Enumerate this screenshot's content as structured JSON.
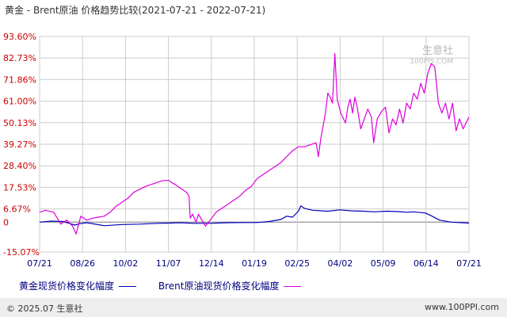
{
  "title": "黄金 - Brent原油 价格趋势比较(2021-07-21 - 2022-07-21)",
  "footer": {
    "copyright": "© 2025.07 生意社",
    "site": "www.100PPI.com"
  },
  "watermark": {
    "name": "生意社",
    "site": "100PPI.COM"
  },
  "colors": {
    "gold": "#0000bb",
    "brent": "#dd00dd",
    "grid": "#cccccc",
    "axis_label_y": "#cc0000",
    "axis_label_x": "#000080"
  },
  "chart_data": {
    "type": "line",
    "title": "黄金 - Brent原油 价格趋势比较(2021-07-21 - 2022-07-21)",
    "x_tick_labels": [
      "07/21",
      "08/26",
      "10/02",
      "11/07",
      "12/14",
      "01/19",
      "02/25",
      "04/02",
      "05/09",
      "06/14",
      "07/21"
    ],
    "y_tick_labels": [
      "93.60%",
      "82.73%",
      "71.86%",
      "61.00%",
      "50.13%",
      "39.27%",
      "28.40%",
      "17.53%",
      "6.67%",
      "0",
      "-15.07%"
    ],
    "y_ticks": [
      93.6,
      82.73,
      71.86,
      61.0,
      50.13,
      39.27,
      28.4,
      17.53,
      6.67,
      0,
      -15.07
    ],
    "ylim": [
      -15.07,
      93.6
    ],
    "x_range_days": [
      0,
      365
    ],
    "grid": true,
    "legend_position": "bottom",
    "series": [
      {
        "name": "黄金现货价格变化幅度",
        "color": "#0000bb",
        "points": [
          [
            0,
            0
          ],
          [
            10,
            0.5
          ],
          [
            20,
            0.3
          ],
          [
            30,
            -1.5
          ],
          [
            34,
            -0.8
          ],
          [
            40,
            -0.3
          ],
          [
            55,
            -1.8
          ],
          [
            70,
            -1.2
          ],
          [
            85,
            -1.0
          ],
          [
            100,
            -0.6
          ],
          [
            110,
            -0.5
          ],
          [
            120,
            -0.3
          ],
          [
            130,
            -0.6
          ],
          [
            145,
            -0.6
          ],
          [
            160,
            -0.3
          ],
          [
            175,
            -0.2
          ],
          [
            185,
            -0.2
          ],
          [
            195,
            0.3
          ],
          [
            205,
            1.3
          ],
          [
            210,
            3.0
          ],
          [
            215,
            2.5
          ],
          [
            220,
            5.5
          ],
          [
            222,
            8.2
          ],
          [
            225,
            7.0
          ],
          [
            232,
            6.0
          ],
          [
            245,
            5.5
          ],
          [
            255,
            6.2
          ],
          [
            265,
            5.7
          ],
          [
            275,
            5.5
          ],
          [
            285,
            5.2
          ],
          [
            295,
            5.5
          ],
          [
            305,
            5.3
          ],
          [
            312,
            5.0
          ],
          [
            318,
            5.2
          ],
          [
            328,
            4.6
          ],
          [
            333,
            3.2
          ],
          [
            340,
            1.0
          ],
          [
            350,
            0.0
          ],
          [
            365,
            -0.5
          ]
        ]
      },
      {
        "name": "Brent原油现货价格变化幅度",
        "color": "#dd00dd",
        "points": [
          [
            0,
            5
          ],
          [
            5,
            6
          ],
          [
            12,
            5
          ],
          [
            18,
            -1
          ],
          [
            23,
            1
          ],
          [
            28,
            -2
          ],
          [
            31,
            -6
          ],
          [
            35,
            3
          ],
          [
            40,
            1
          ],
          [
            45,
            2
          ],
          [
            50,
            2.5
          ],
          [
            55,
            3
          ],
          [
            60,
            5
          ],
          [
            65,
            8
          ],
          [
            75,
            12
          ],
          [
            80,
            15
          ],
          [
            90,
            18
          ],
          [
            100,
            20
          ],
          [
            105,
            21
          ],
          [
            110,
            21
          ],
          [
            112,
            20
          ],
          [
            115,
            19
          ],
          [
            120,
            17
          ],
          [
            125,
            15
          ],
          [
            127,
            13
          ],
          [
            128,
            2
          ],
          [
            130,
            4
          ],
          [
            133,
            0
          ],
          [
            135,
            4
          ],
          [
            138,
            1
          ],
          [
            141,
            -2
          ],
          [
            145,
            1
          ],
          [
            150,
            5
          ],
          [
            155,
            7
          ],
          [
            160,
            9
          ],
          [
            165,
            11
          ],
          [
            170,
            13
          ],
          [
            175,
            16
          ],
          [
            180,
            18
          ],
          [
            185,
            22
          ],
          [
            190,
            24
          ],
          [
            195,
            26
          ],
          [
            200,
            28
          ],
          [
            205,
            30
          ],
          [
            210,
            33
          ],
          [
            215,
            36
          ],
          [
            220,
            38
          ],
          [
            225,
            38
          ],
          [
            230,
            39
          ],
          [
            235,
            40
          ],
          [
            237,
            33
          ],
          [
            239,
            42
          ],
          [
            243,
            55
          ],
          [
            245,
            65
          ],
          [
            247,
            63
          ],
          [
            249,
            60
          ],
          [
            251,
            85
          ],
          [
            253,
            62
          ],
          [
            256,
            55
          ],
          [
            260,
            50
          ],
          [
            262,
            58
          ],
          [
            264,
            62
          ],
          [
            266,
            55
          ],
          [
            268,
            63
          ],
          [
            270,
            58
          ],
          [
            273,
            47
          ],
          [
            276,
            52
          ],
          [
            279,
            57
          ],
          [
            282,
            53
          ],
          [
            284,
            40
          ],
          [
            287,
            52
          ],
          [
            291,
            56
          ],
          [
            294,
            58
          ],
          [
            297,
            45
          ],
          [
            300,
            52
          ],
          [
            303,
            49
          ],
          [
            306,
            57
          ],
          [
            309,
            50
          ],
          [
            312,
            60
          ],
          [
            315,
            57
          ],
          [
            318,
            65
          ],
          [
            321,
            62
          ],
          [
            324,
            70
          ],
          [
            327,
            65
          ],
          [
            330,
            75
          ],
          [
            333,
            80
          ],
          [
            336,
            78
          ],
          [
            339,
            60
          ],
          [
            342,
            55
          ],
          [
            345,
            60
          ],
          [
            348,
            52
          ],
          [
            351,
            60
          ],
          [
            354,
            46
          ],
          [
            357,
            52
          ],
          [
            360,
            47
          ],
          [
            365,
            53
          ]
        ]
      }
    ]
  }
}
